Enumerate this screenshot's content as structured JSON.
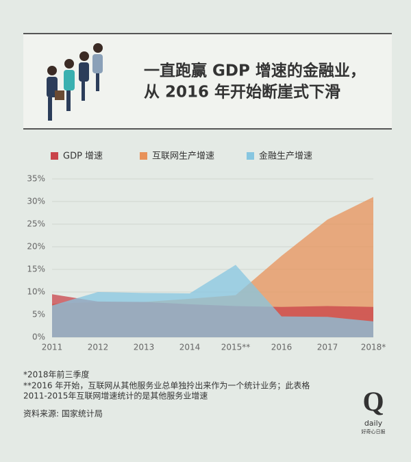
{
  "chart_data": {
    "type": "area",
    "title_lines": [
      "一直跑赢 GDP 增速的金融业，",
      "从 2016 年开始断崖式下滑"
    ],
    "categories": [
      "2011",
      "2012",
      "2013",
      "2014",
      "2015**",
      "2016",
      "2017",
      "2018*"
    ],
    "series": [
      {
        "name": "GDP 增速",
        "color": "#c9434a",
        "values": [
          9.5,
          7.9,
          7.8,
          7.3,
          6.9,
          6.7,
          6.9,
          6.7
        ]
      },
      {
        "name": "互联网生产增速",
        "color": "#e8925a",
        "values": [
          7.4,
          7.8,
          7.8,
          8.5,
          9.3,
          18,
          26,
          31
        ]
      },
      {
        "name": "金融生产增速",
        "color": "#87c6e0",
        "values": [
          7.0,
          10,
          9.8,
          9.7,
          16,
          4.6,
          4.5,
          3.5
        ]
      }
    ],
    "ylim": [
      0,
      35
    ],
    "yticks": [
      {
        "value": 0,
        "label": "0%"
      },
      {
        "value": 5,
        "label": "5%"
      },
      {
        "value": 10,
        "label": "10%"
      },
      {
        "value": 15,
        "label": "15%"
      },
      {
        "value": 20,
        "label": "20%"
      },
      {
        "value": 25,
        "label": "25%"
      },
      {
        "value": 30,
        "label": "30%"
      },
      {
        "value": 35,
        "label": "35%"
      }
    ],
    "grid": true,
    "legend": "top",
    "notes": [
      "*2018年前三季度",
      "**2016 年开始，互联网从其他服务业总单独拎出来作为一个统计业务；此表格",
      "2011-2015年互联网增速统计的是其他服务业增速"
    ],
    "source": "资料来源: 国家统计局",
    "logo": {
      "mark": "Q",
      "name": "daily",
      "tagline": "好奇心日报"
    }
  }
}
